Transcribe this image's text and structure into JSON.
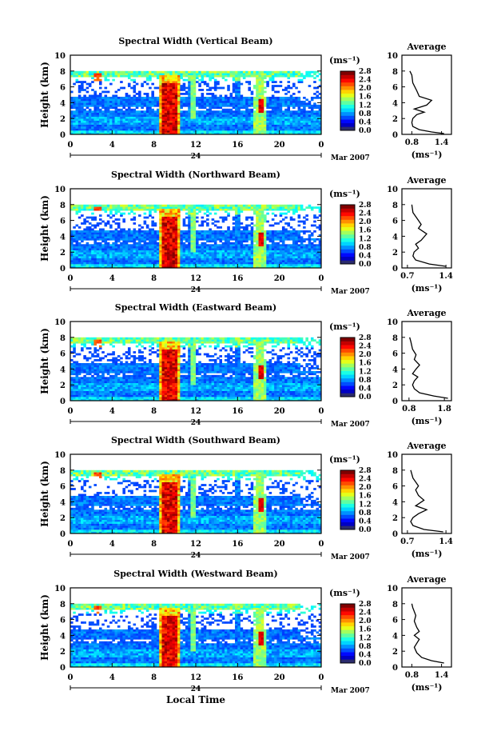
{
  "chart_data": [
    {
      "type": "heatmap",
      "title": "Spectral Width (Vertical Beam)",
      "ylabel": "Height (km)",
      "ylim": [
        0,
        10
      ],
      "yticks": [
        "0",
        "2",
        "4",
        "6",
        "8",
        "10"
      ],
      "xticks": [
        "0",
        "4",
        "8",
        "12",
        "16",
        "20",
        "0"
      ],
      "xlim": [
        0,
        24
      ],
      "date_label": "24",
      "month_label": "Mar 2007",
      "colorbar_unit": "(ms⁻¹)",
      "colorbar_ticks": [
        "0.0",
        "0.4",
        "0.8",
        "1.2",
        "1.6",
        "2.0",
        "2.4",
        "2.8"
      ],
      "average": {
        "title": "Average",
        "xlabel": "(ms⁻¹)",
        "xticks": [
          "0.8",
          "1.4"
        ],
        "xlim": [
          0.6,
          1.6
        ],
        "ylim": [
          0,
          10
        ],
        "yticks": [
          "0",
          "2",
          "4",
          "6",
          "8",
          "10"
        ],
        "profile": [
          [
            1.45,
            0.1
          ],
          [
            1.2,
            0.3
          ],
          [
            0.95,
            0.6
          ],
          [
            0.82,
            1.0
          ],
          [
            0.8,
            1.5
          ],
          [
            0.82,
            2.0
          ],
          [
            0.9,
            2.5
          ],
          [
            1.05,
            2.8
          ],
          [
            0.85,
            3.2
          ],
          [
            1.1,
            3.7
          ],
          [
            1.2,
            4.3
          ],
          [
            0.95,
            4.8
          ],
          [
            0.9,
            5.5
          ],
          [
            0.82,
            6.5
          ],
          [
            0.8,
            7.5
          ],
          [
            0.76,
            8.0
          ]
        ]
      }
    },
    {
      "type": "heatmap",
      "title": "Spectral Width (Northward Beam)",
      "ylabel": "Height (km)",
      "ylim": [
        0,
        10
      ],
      "yticks": [
        "0",
        "2",
        "4",
        "6",
        "8",
        "10"
      ],
      "xticks": [
        "0",
        "4",
        "8",
        "12",
        "16",
        "20",
        "0"
      ],
      "xlim": [
        0,
        24
      ],
      "date_label": "24",
      "month_label": "Mar 2007",
      "colorbar_unit": "(ms⁻¹)",
      "colorbar_ticks": [
        "0.0",
        "0.4",
        "0.8",
        "1.2",
        "1.6",
        "2.0",
        "2.4",
        "2.8"
      ],
      "average": {
        "title": "Average",
        "xlabel": "(ms⁻¹)",
        "xticks": [
          "0.7",
          "1.4"
        ],
        "xlim": [
          0.6,
          1.5
        ],
        "ylim": [
          0,
          10
        ],
        "yticks": [
          "0",
          "2",
          "4",
          "6",
          "8",
          "10"
        ],
        "profile": [
          [
            1.4,
            0.2
          ],
          [
            1.1,
            0.5
          ],
          [
            0.85,
            1.0
          ],
          [
            0.8,
            1.5
          ],
          [
            0.82,
            2.0
          ],
          [
            0.9,
            2.5
          ],
          [
            0.85,
            3.0
          ],
          [
            0.95,
            3.5
          ],
          [
            1.05,
            4.3
          ],
          [
            0.9,
            5.0
          ],
          [
            0.95,
            5.5
          ],
          [
            0.9,
            6.0
          ],
          [
            0.8,
            7.0
          ],
          [
            0.78,
            8.0
          ]
        ]
      }
    },
    {
      "type": "heatmap",
      "title": "Spectral Width (Eastward Beam)",
      "ylabel": "Height (km)",
      "ylim": [
        0,
        10
      ],
      "yticks": [
        "0",
        "2",
        "4",
        "6",
        "8",
        "10"
      ],
      "xticks": [
        "0",
        "4",
        "8",
        "12",
        "16",
        "20",
        "0"
      ],
      "xlim": [
        0,
        24
      ],
      "date_label": "24",
      "month_label": "Mar 2007",
      "colorbar_unit": "(ms⁻¹)",
      "colorbar_ticks": [
        "0.0",
        "0.4",
        "0.8",
        "1.2",
        "1.6",
        "2.0",
        "2.4",
        "2.8"
      ],
      "average": {
        "title": "Average",
        "xlabel": "(ms⁻¹)",
        "xticks": [
          "0.8",
          "1.8"
        ],
        "xlim": [
          0.6,
          2.0
        ],
        "ylim": [
          0,
          10
        ],
        "yticks": [
          "0",
          "2",
          "4",
          "6",
          "8",
          "10"
        ],
        "profile": [
          [
            1.9,
            0.3
          ],
          [
            1.5,
            0.6
          ],
          [
            1.1,
            1.0
          ],
          [
            0.95,
            1.5
          ],
          [
            0.9,
            2.0
          ],
          [
            0.95,
            2.5
          ],
          [
            1.05,
            3.0
          ],
          [
            0.9,
            3.4
          ],
          [
            1.0,
            4.0
          ],
          [
            1.1,
            4.5
          ],
          [
            0.95,
            5.2
          ],
          [
            1.0,
            5.8
          ],
          [
            0.9,
            6.5
          ],
          [
            0.85,
            7.5
          ],
          [
            0.82,
            8.0
          ]
        ]
      }
    },
    {
      "type": "heatmap",
      "title": "Spectral Width (Southward Beam)",
      "ylabel": "Height (km)",
      "ylim": [
        0,
        10
      ],
      "yticks": [
        "0",
        "2",
        "4",
        "6",
        "8",
        "10"
      ],
      "xticks": [
        "0",
        "4",
        "8",
        "12",
        "16",
        "20",
        "0"
      ],
      "xlim": [
        0,
        24
      ],
      "date_label": "24",
      "month_label": "Mar 2007",
      "colorbar_unit": "(ms⁻¹)",
      "colorbar_ticks": [
        "0.0",
        "0.4",
        "0.8",
        "1.2",
        "1.6",
        "2.0",
        "2.4",
        "2.8"
      ],
      "average": {
        "title": "Average",
        "xlabel": "(ms⁻¹)",
        "xticks": [
          "0.7",
          "1.4"
        ],
        "xlim": [
          0.6,
          1.5
        ],
        "ylim": [
          0,
          10
        ],
        "yticks": [
          "0",
          "2",
          "4",
          "6",
          "8",
          "10"
        ],
        "profile": [
          [
            1.35,
            0.2
          ],
          [
            1.0,
            0.5
          ],
          [
            0.8,
            1.0
          ],
          [
            0.76,
            1.5
          ],
          [
            0.8,
            2.0
          ],
          [
            0.9,
            2.5
          ],
          [
            1.05,
            3.0
          ],
          [
            0.85,
            3.5
          ],
          [
            1.0,
            4.2
          ],
          [
            0.9,
            4.8
          ],
          [
            0.85,
            5.5
          ],
          [
            0.9,
            6.0
          ],
          [
            0.8,
            7.0
          ],
          [
            0.76,
            8.0
          ]
        ]
      }
    },
    {
      "type": "heatmap",
      "title": "Spectral Width (Westward Beam)",
      "ylabel": "Height (km)",
      "ylim": [
        0,
        10
      ],
      "yticks": [
        "0",
        "2",
        "4",
        "6",
        "8",
        "10"
      ],
      "xticks": [
        "0",
        "4",
        "8",
        "12",
        "16",
        "20",
        "0"
      ],
      "xlim": [
        0,
        24
      ],
      "date_label": "24",
      "month_label": "Mar 2007",
      "colorbar_unit": "(ms⁻¹)",
      "colorbar_ticks": [
        "0.0",
        "0.4",
        "0.8",
        "1.2",
        "1.6",
        "2.0",
        "2.4",
        "2.8"
      ],
      "average": {
        "title": "Average",
        "xlabel": "(ms⁻¹)",
        "xticks": [
          "0.8",
          "1.4"
        ],
        "xlim": [
          0.6,
          1.6
        ],
        "ylim": [
          0,
          10
        ],
        "yticks": [
          "0",
          "2",
          "4",
          "6",
          "8",
          "10"
        ],
        "profile": [
          [
            1.45,
            0.5
          ],
          [
            1.2,
            0.8
          ],
          [
            1.0,
            1.2
          ],
          [
            0.9,
            1.8
          ],
          [
            0.85,
            2.5
          ],
          [
            0.9,
            3.0
          ],
          [
            0.95,
            3.5
          ],
          [
            0.85,
            4.0
          ],
          [
            0.95,
            4.5
          ],
          [
            0.9,
            5.0
          ],
          [
            0.85,
            5.8
          ],
          [
            0.88,
            6.5
          ],
          [
            0.82,
            7.5
          ],
          [
            0.8,
            8.0
          ]
        ]
      }
    }
  ],
  "xlabel_bottom": "Local Time"
}
